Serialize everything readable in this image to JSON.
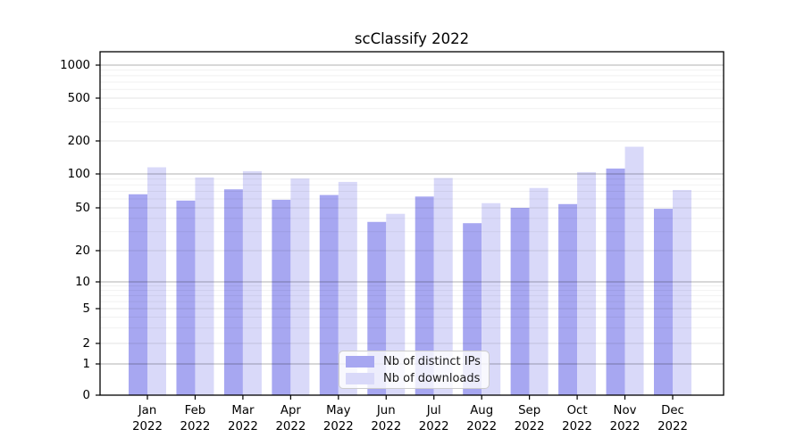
{
  "figure": {
    "background": "#ffffff"
  },
  "chart_data": {
    "type": "bar",
    "title": "scClassify 2022",
    "categories": [
      "Jan",
      "Feb",
      "Mar",
      "Apr",
      "May",
      "Jun",
      "Jul",
      "Aug",
      "Sep",
      "Oct",
      "Nov",
      "Dec"
    ],
    "category_year": "2022",
    "series": [
      {
        "name": "Nb of distinct IPs",
        "color": "#a7a7f1",
        "values": [
          66,
          58,
          73,
          59,
          65,
          37,
          63,
          36,
          50,
          54,
          112,
          49
        ]
      },
      {
        "name": "Nb of downloads",
        "color": "#d9d9f9",
        "values": [
          115,
          93,
          106,
          91,
          85,
          44,
          92,
          55,
          75,
          104,
          177,
          72
        ]
      }
    ],
    "xlabel": "",
    "ylabel": "",
    "yscale": "log (symlog, 0 shown at axis bottom)",
    "yticks": [
      0,
      1,
      2,
      5,
      10,
      20,
      50,
      100,
      200,
      500,
      1000
    ],
    "ylim": [
      0,
      1300
    ],
    "grid": true,
    "legend_position": "lower center"
  },
  "style": {
    "spine_color": "#000000",
    "tick_color": "#000000",
    "grid_decade_color": "rgba(0,0,0,0.30)",
    "grid_mid_color": "rgba(0,0,0,0.11)",
    "grid_minor_color": "rgba(0,0,0,0.055)",
    "minor_grid_values": [
      3,
      4,
      6,
      7,
      8,
      9,
      30,
      40,
      60,
      70,
      80,
      90,
      300,
      400,
      600,
      700,
      800,
      900
    ]
  }
}
